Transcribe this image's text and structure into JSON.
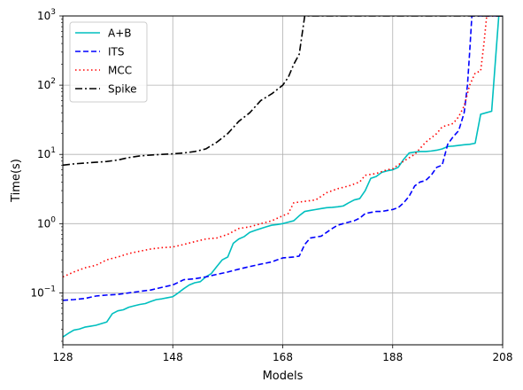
{
  "chart_data": {
    "type": "line",
    "title": "",
    "xlabel": "Models",
    "ylabel": "Time(s)",
    "xlim": [
      128,
      208
    ],
    "ylim_log10": [
      -1.75,
      3
    ],
    "yscale": "log",
    "grid": true,
    "legend_placement": "top-left",
    "x_ticks": [
      128,
      148,
      168,
      188,
      208
    ],
    "y_ticks": [
      {
        "exp": -1,
        "label": "10"
      },
      {
        "exp": 0,
        "label": "10"
      },
      {
        "exp": 1,
        "label": "10"
      },
      {
        "exp": 2,
        "label": "10"
      },
      {
        "exp": 3,
        "label": "10"
      }
    ],
    "y_tick_superscripts": [
      "−1",
      "0",
      "1",
      "2",
      "3"
    ],
    "series": [
      {
        "name": "A+B",
        "color": "#00bfbf",
        "dash": "solid",
        "points": [
          [
            128,
            0.023
          ],
          [
            129,
            0.026
          ],
          [
            130,
            0.029
          ],
          [
            131,
            0.03
          ],
          [
            132,
            0.032
          ],
          [
            133,
            0.033
          ],
          [
            134,
            0.034
          ],
          [
            135,
            0.036
          ],
          [
            136,
            0.038
          ],
          [
            137,
            0.05
          ],
          [
            138,
            0.055
          ],
          [
            139,
            0.057
          ],
          [
            140,
            0.062
          ],
          [
            141,
            0.065
          ],
          [
            142,
            0.068
          ],
          [
            143,
            0.07
          ],
          [
            144,
            0.075
          ],
          [
            145,
            0.08
          ],
          [
            146,
            0.082
          ],
          [
            147,
            0.085
          ],
          [
            148,
            0.088
          ],
          [
            149,
            0.1
          ],
          [
            150,
            0.115
          ],
          [
            151,
            0.13
          ],
          [
            152,
            0.14
          ],
          [
            153,
            0.145
          ],
          [
            154,
            0.17
          ],
          [
            155,
            0.19
          ],
          [
            156,
            0.24
          ],
          [
            157,
            0.3
          ],
          [
            158,
            0.33
          ],
          [
            159,
            0.52
          ],
          [
            160,
            0.6
          ],
          [
            161,
            0.65
          ],
          [
            162,
            0.75
          ],
          [
            163,
            0.8
          ],
          [
            164,
            0.85
          ],
          [
            165,
            0.9
          ],
          [
            166,
            0.95
          ],
          [
            167,
            0.97
          ],
          [
            168,
            1.0
          ],
          [
            169,
            1.05
          ],
          [
            170,
            1.1
          ],
          [
            171,
            1.3
          ],
          [
            172,
            1.5
          ],
          [
            173,
            1.55
          ],
          [
            174,
            1.6
          ],
          [
            175,
            1.65
          ],
          [
            176,
            1.7
          ],
          [
            177,
            1.72
          ],
          [
            178,
            1.75
          ],
          [
            179,
            1.8
          ],
          [
            180,
            2.0
          ],
          [
            181,
            2.2
          ],
          [
            182,
            2.3
          ],
          [
            183,
            3.0
          ],
          [
            184,
            4.5
          ],
          [
            185,
            4.8
          ],
          [
            186,
            5.5
          ],
          [
            187,
            5.8
          ],
          [
            188,
            6.0
          ],
          [
            189,
            6.5
          ],
          [
            190,
            8.5
          ],
          [
            191,
            10.5
          ],
          [
            192,
            10.8
          ],
          [
            193,
            11.0
          ],
          [
            194,
            11.0
          ],
          [
            195,
            11.2
          ],
          [
            196,
            11.5
          ],
          [
            197,
            12.0
          ],
          [
            198,
            13.0
          ],
          [
            199,
            13.2
          ],
          [
            200,
            13.5
          ],
          [
            201,
            13.8
          ],
          [
            202,
            14.0
          ],
          [
            203,
            14.5
          ],
          [
            204,
            38
          ],
          [
            205,
            40
          ],
          [
            206,
            42
          ],
          [
            206.8,
            300
          ],
          [
            207.3,
            1000
          ],
          [
            208,
            1000
          ]
        ]
      },
      {
        "name": "ITS",
        "color": "#0000ff",
        "dash": "dashed",
        "points": [
          [
            128,
            0.078
          ],
          [
            130,
            0.08
          ],
          [
            132,
            0.083
          ],
          [
            134,
            0.09
          ],
          [
            136,
            0.093
          ],
          [
            138,
            0.095
          ],
          [
            140,
            0.1
          ],
          [
            142,
            0.105
          ],
          [
            144,
            0.11
          ],
          [
            146,
            0.12
          ],
          [
            148,
            0.13
          ],
          [
            150,
            0.155
          ],
          [
            152,
            0.16
          ],
          [
            154,
            0.17
          ],
          [
            156,
            0.185
          ],
          [
            158,
            0.2
          ],
          [
            160,
            0.22
          ],
          [
            162,
            0.24
          ],
          [
            164,
            0.26
          ],
          [
            166,
            0.28
          ],
          [
            167,
            0.3
          ],
          [
            168,
            0.32
          ],
          [
            170,
            0.33
          ],
          [
            171,
            0.34
          ],
          [
            172,
            0.5
          ],
          [
            173,
            0.62
          ],
          [
            174,
            0.64
          ],
          [
            175,
            0.66
          ],
          [
            176,
            0.75
          ],
          [
            177,
            0.85
          ],
          [
            178,
            0.95
          ],
          [
            179,
            1.0
          ],
          [
            180,
            1.05
          ],
          [
            181,
            1.1
          ],
          [
            182,
            1.2
          ],
          [
            183,
            1.4
          ],
          [
            184,
            1.45
          ],
          [
            185,
            1.5
          ],
          [
            186,
            1.5
          ],
          [
            187,
            1.55
          ],
          [
            188,
            1.6
          ],
          [
            189,
            1.7
          ],
          [
            190,
            2.0
          ],
          [
            191,
            2.5
          ],
          [
            192,
            3.5
          ],
          [
            193,
            4.0
          ],
          [
            194,
            4.2
          ],
          [
            195,
            5.0
          ],
          [
            196,
            6.5
          ],
          [
            197,
            7.0
          ],
          [
            198,
            14
          ],
          [
            199,
            18
          ],
          [
            200,
            22
          ],
          [
            201,
            40
          ],
          [
            201.6,
            100
          ],
          [
            202,
            300
          ],
          [
            202.4,
            1000
          ],
          [
            208,
            1000
          ]
        ]
      },
      {
        "name": "MCC",
        "color": "#ff0000",
        "dash": "dotted",
        "points": [
          [
            128,
            0.17
          ],
          [
            130,
            0.2
          ],
          [
            132,
            0.23
          ],
          [
            134,
            0.25
          ],
          [
            136,
            0.3
          ],
          [
            138,
            0.33
          ],
          [
            140,
            0.37
          ],
          [
            142,
            0.4
          ],
          [
            144,
            0.43
          ],
          [
            146,
            0.45
          ],
          [
            148,
            0.46
          ],
          [
            150,
            0.5
          ],
          [
            152,
            0.55
          ],
          [
            154,
            0.6
          ],
          [
            156,
            0.62
          ],
          [
            158,
            0.7
          ],
          [
            160,
            0.85
          ],
          [
            162,
            0.9
          ],
          [
            164,
            1.0
          ],
          [
            166,
            1.1
          ],
          [
            168,
            1.3
          ],
          [
            169,
            1.4
          ],
          [
            170,
            2.0
          ],
          [
            172,
            2.1
          ],
          [
            174,
            2.2
          ],
          [
            176,
            2.8
          ],
          [
            178,
            3.2
          ],
          [
            180,
            3.5
          ],
          [
            182,
            4.0
          ],
          [
            183,
            5.0
          ],
          [
            185,
            5.3
          ],
          [
            187,
            6.0
          ],
          [
            188,
            6.2
          ],
          [
            190,
            8.0
          ],
          [
            192,
            10.0
          ],
          [
            194,
            15.0
          ],
          [
            196,
            20.0
          ],
          [
            197,
            25.0
          ],
          [
            199,
            28.0
          ],
          [
            200,
            35.0
          ],
          [
            201,
            50.0
          ],
          [
            202,
            100
          ],
          [
            203,
            150
          ],
          [
            204,
            160
          ],
          [
            204.6,
            400
          ],
          [
            205.1,
            1000
          ],
          [
            208,
            1000
          ]
        ]
      },
      {
        "name": "Spike",
        "color": "#000000",
        "dash": "dashdot",
        "points": [
          [
            128,
            7.0
          ],
          [
            130,
            7.3
          ],
          [
            132,
            7.5
          ],
          [
            134,
            7.7
          ],
          [
            136,
            7.9
          ],
          [
            138,
            8.3
          ],
          [
            140,
            9.0
          ],
          [
            142,
            9.5
          ],
          [
            144,
            9.8
          ],
          [
            146,
            10.0
          ],
          [
            148,
            10.2
          ],
          [
            150,
            10.5
          ],
          [
            152,
            11.0
          ],
          [
            154,
            12.0
          ],
          [
            156,
            15.0
          ],
          [
            158,
            20.0
          ],
          [
            160,
            30.0
          ],
          [
            162,
            40.0
          ],
          [
            164,
            60.0
          ],
          [
            166,
            75.0
          ],
          [
            168,
            100.0
          ],
          [
            169,
            130
          ],
          [
            170,
            200
          ],
          [
            171,
            280
          ],
          [
            171.6,
            600
          ],
          [
            172,
            1000
          ],
          [
            208,
            1000
          ]
        ]
      }
    ]
  }
}
